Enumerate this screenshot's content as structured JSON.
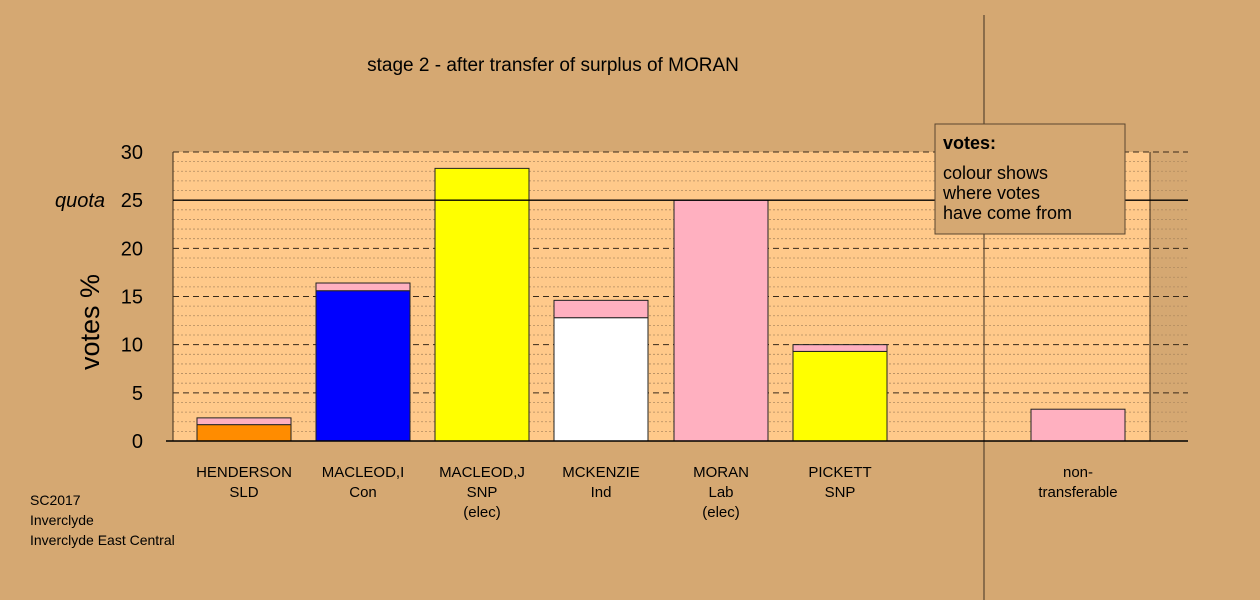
{
  "chart_data": {
    "type": "bar",
    "stacked": true,
    "title": "stage 2 - after transfer of surplus of MORAN",
    "ylabel": "votes %",
    "ylim": [
      0,
      30
    ],
    "yticks": [
      "0",
      "5",
      "10",
      "15",
      "20",
      "25",
      "30"
    ],
    "quota": {
      "label": "quota",
      "value": 25
    },
    "grid": true,
    "categories": [
      {
        "lines": [
          "HENDERSON",
          "SLD"
        ],
        "segments": [
          {
            "value": 1.7,
            "color": "#ff8c00"
          },
          {
            "value": 0.7,
            "color": "#ffb0c0"
          }
        ]
      },
      {
        "lines": [
          "MACLEOD,I",
          "Con"
        ],
        "segments": [
          {
            "value": 15.6,
            "color": "#0000ff"
          },
          {
            "value": 0.8,
            "color": "#ffb0c0"
          }
        ]
      },
      {
        "lines": [
          "MACLEOD,J",
          "SNP",
          "(elec)"
        ],
        "segments": [
          {
            "value": 28.3,
            "color": "#ffff00"
          }
        ]
      },
      {
        "lines": [
          "MCKENZIE",
          "Ind"
        ],
        "segments": [
          {
            "value": 12.8,
            "color": "#ffffff"
          },
          {
            "value": 1.8,
            "color": "#ffb0c0"
          }
        ]
      },
      {
        "lines": [
          "MORAN",
          "Lab",
          "(elec)"
        ],
        "segments": [
          {
            "value": 25.0,
            "color": "#ffb0c0"
          }
        ]
      },
      {
        "lines": [
          "PICKETT",
          "SNP"
        ],
        "segments": [
          {
            "value": 9.3,
            "color": "#ffff00"
          },
          {
            "value": 0.7,
            "color": "#ffb0c0"
          }
        ]
      },
      {
        "lines": [
          "non-",
          "transferable"
        ],
        "segments": [
          {
            "value": 3.3,
            "color": "#ffb0c0"
          }
        ],
        "separate": true
      }
    ],
    "legend": {
      "title": "votes:",
      "lines": [
        "colour shows",
        "where votes",
        "have come from"
      ]
    }
  },
  "footer": {
    "line1": "SC2017",
    "line2": "Inverclyde",
    "line3": "Inverclyde East Central"
  }
}
